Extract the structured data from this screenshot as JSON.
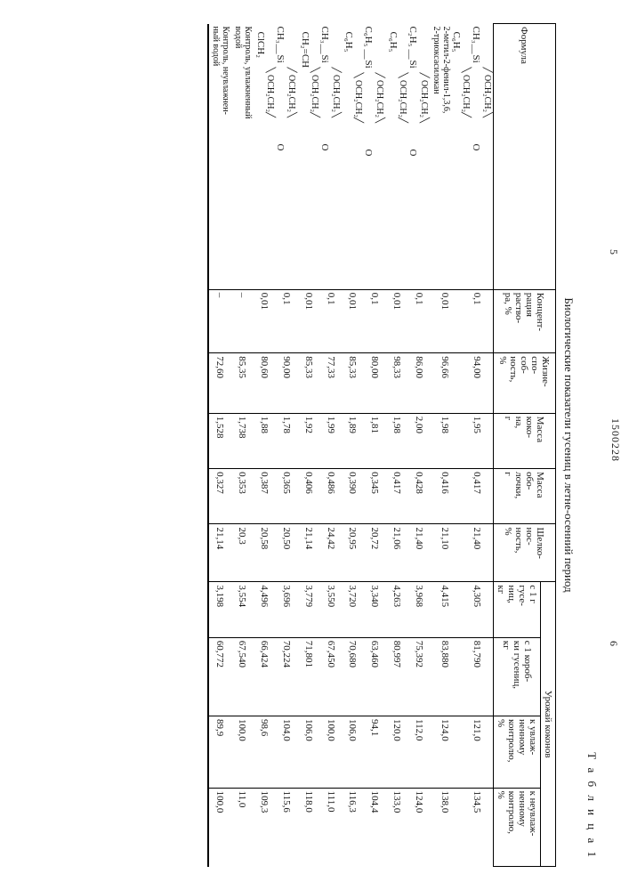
{
  "doc_number": "1500228",
  "page_left": "5",
  "page_right": "6",
  "table_label": "Т а б л и ц а  1",
  "caption": "Биологические показатели гусениц в летне-осенний период",
  "headers": {
    "formula": "Формула",
    "conc": "Концент-\nрация\nраство-\nра, %",
    "vitality": "Жизне-\nспо-\nсоб-\nность,\n%",
    "cocoon_mass": "Масса\nкоко-\nна,\nг",
    "shell_mass": "Масса\nобо-\nлочки,\nг",
    "silk": "Шелко-\nнос-\nность,\n%",
    "yield_group": "Урожай коконов",
    "y_per_g": "с 1 г\nгусе-\nниц,\nкг",
    "y_per_box": "с 1 короб-\nки гусениц,\nкг",
    "y_wet": "к увлаж-\nненному\nконтролю,\n%",
    "y_dry": "к неувлаж-\nненному\nконтролю,\n%"
  },
  "compounds": [
    {
      "left": "CH₃",
      "top": "OCH₂CH₂",
      "bot": "OCH₂CH₂",
      "right": "O",
      "sub1": "C₆H₅",
      "note": "2-метил-2-фенил-1,3,6,\n2-триоксасилокан"
    },
    {
      "left": "C₂H₅",
      "top": "OCH₂CH₂",
      "bot": "OCH₂CH₂",
      "right": "O",
      "sub1": "C₆H₅"
    },
    {
      "left": "C₆H₅",
      "top": "OCH₂CH₂",
      "bot": "OCH₂CH₂",
      "right": "O",
      "sub1": "C₆H₅"
    },
    {
      "left": "CH₃",
      "top": "OCH₂CH₂",
      "bot": "OCH₂CH₂",
      "right": "O",
      "sub1": "CH₂=CH"
    },
    {
      "left": "CH₃",
      "top": "OCH₂CH₂",
      "bot": "OCH₂CH₂",
      "right": "O",
      "sub1": "ClCH₂"
    }
  ],
  "rows": [
    {
      "conc": "0,1",
      "vit": "94,00",
      "cm": "1,95",
      "sm": "0,417",
      "silk": "21,40",
      "y1": "4,305",
      "y2": "81,790",
      "y3": "121,0",
      "y4": "134,5"
    },
    {
      "conc": "0,01",
      "vit": "96,66",
      "cm": "1,98",
      "sm": "0,416",
      "silk": "21,10",
      "y1": "4,415",
      "y2": "83,880",
      "y3": "124,0",
      "y4": "138,0"
    },
    {
      "conc": "0,1",
      "vit": "86,00",
      "cm": "2,00",
      "sm": "0,428",
      "silk": "21,40",
      "y1": "3,968",
      "y2": "75,392",
      "y3": "112,0",
      "y4": "124,0"
    },
    {
      "conc": "0,01",
      "vit": "98,33",
      "cm": "1,98",
      "sm": "0,417",
      "silk": "21,06",
      "y1": "4,263",
      "y2": "80,997",
      "y3": "120,0",
      "y4": "133,0"
    },
    {
      "conc": "0,1",
      "vit": "80,00",
      "cm": "1,81",
      "sm": "0,345",
      "silk": "20,72",
      "y1": "3,340",
      "y2": "63,460",
      "y3": "94,1",
      "y4": "104,4"
    },
    {
      "conc": "0,01",
      "vit": "85,33",
      "cm": "1,89",
      "sm": "0,390",
      "silk": "20,95",
      "y1": "3,720",
      "y2": "70,680",
      "y3": "106,0",
      "y4": "116,3"
    },
    {
      "conc": "0,1",
      "vit": "77,33",
      "cm": "1,99",
      "sm": "0,486",
      "silk": "24,42",
      "y1": "3,550",
      "y2": "67,450",
      "y3": "100,0",
      "y4": "111,0"
    },
    {
      "conc": "0,01",
      "vit": "85,33",
      "cm": "1,92",
      "sm": "0,406",
      "silk": "21,14",
      "y1": "3,779",
      "y2": "71,801",
      "y3": "106,0",
      "y4": "118,0"
    },
    {
      "conc": "0,1",
      "vit": "90,00",
      "cm": "1,78",
      "sm": "0,365",
      "silk": "20,50",
      "y1": "3,696",
      "y2": "70,224",
      "y3": "104,0",
      "y4": "115,6"
    },
    {
      "conc": "0,01",
      "vit": "80,60",
      "cm": "1,88",
      "sm": "0,387",
      "silk": "20,58",
      "y1": "4,496",
      "y2": "66,424",
      "y3": "98,6",
      "y4": "109,3"
    }
  ],
  "controls": [
    {
      "label": "Контроль, увлажненный\nводой",
      "conc": "–",
      "vit": "85,35",
      "cm": "1,738",
      "sm": "0,353",
      "silk": "20,3",
      "y1": "3,554",
      "y2": "67,540",
      "y3": "100,0",
      "y4": "11,0"
    },
    {
      "label": "Контроль, неувлажнен-\nный водой",
      "conc": "–",
      "vit": "72,60",
      "cm": "1,528",
      "sm": "0,327",
      "silk": "21,14",
      "y1": "3,198",
      "y2": "60,772",
      "y3": "89,9",
      "y4": "100,0"
    }
  ]
}
